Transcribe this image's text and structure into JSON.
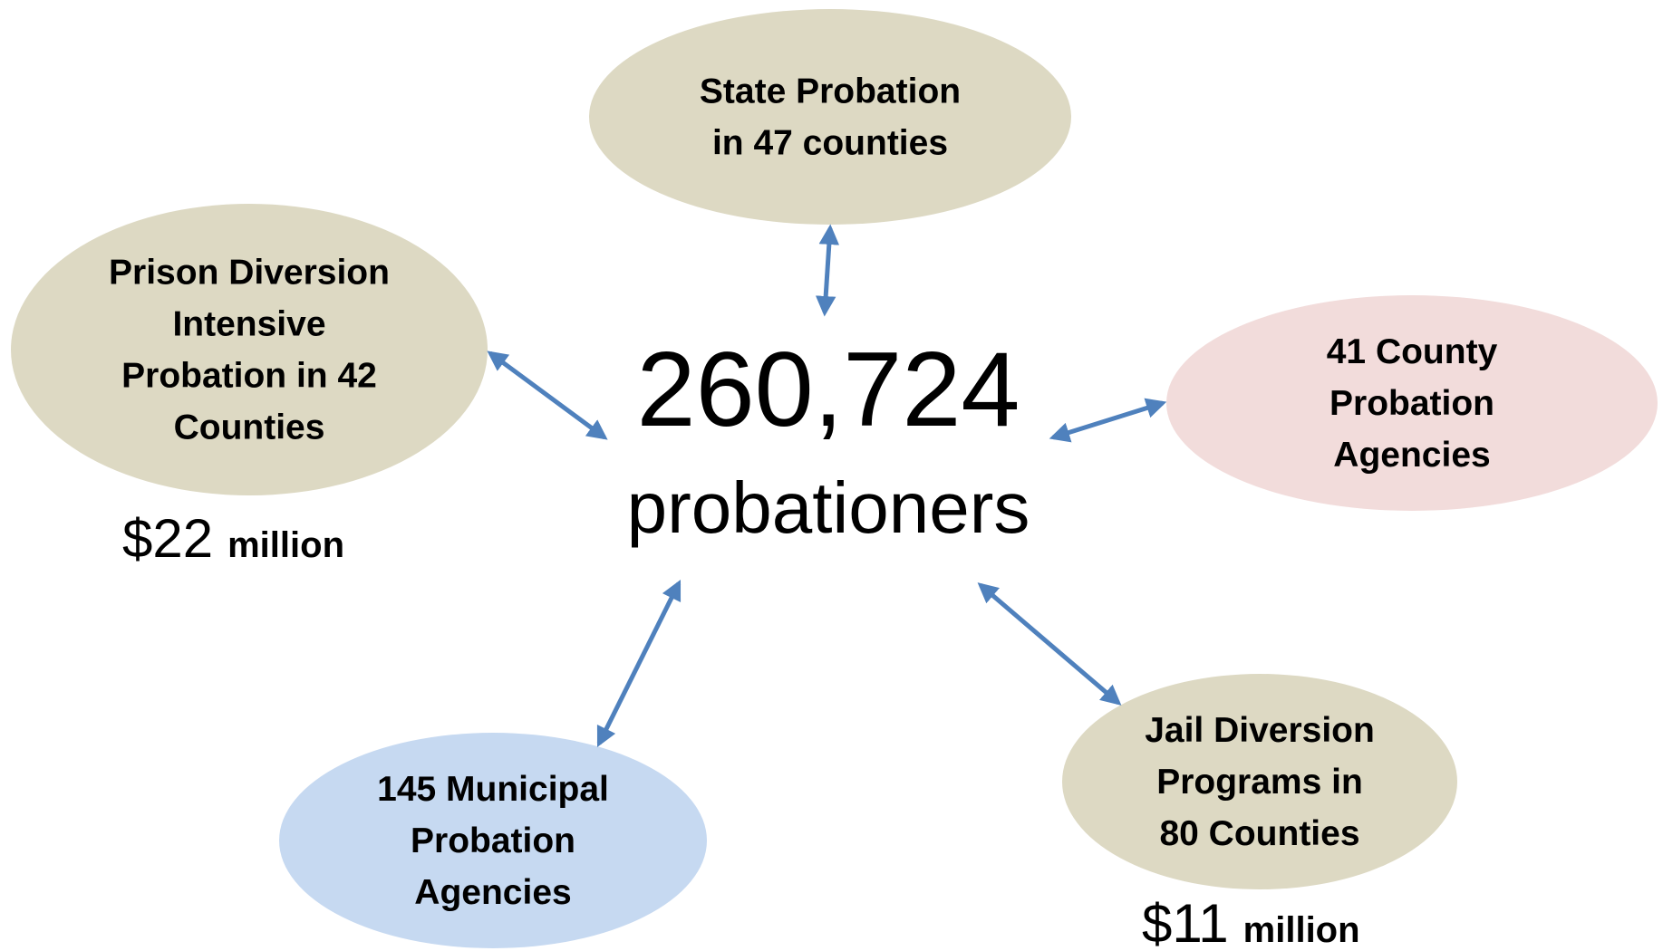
{
  "center": {
    "number": "260,724",
    "label": "probationers"
  },
  "nodes": [
    {
      "lines": [
        "State Probation",
        "in 47 counties"
      ]
    },
    {
      "lines": [
        "Prison Diversion",
        "Intensive",
        "Probation in 42",
        "Counties"
      ]
    },
    {
      "lines": [
        "41 County",
        "Probation",
        "Agencies"
      ]
    },
    {
      "lines": [
        "Jail Diversion",
        "Programs in",
        "80 Counties"
      ]
    },
    {
      "lines": [
        "145 Municipal",
        "Probation",
        "Agencies"
      ]
    }
  ],
  "funding": [
    {
      "amount": "$22",
      "unit": "million"
    },
    {
      "amount": "$11",
      "unit": "million"
    }
  ]
}
